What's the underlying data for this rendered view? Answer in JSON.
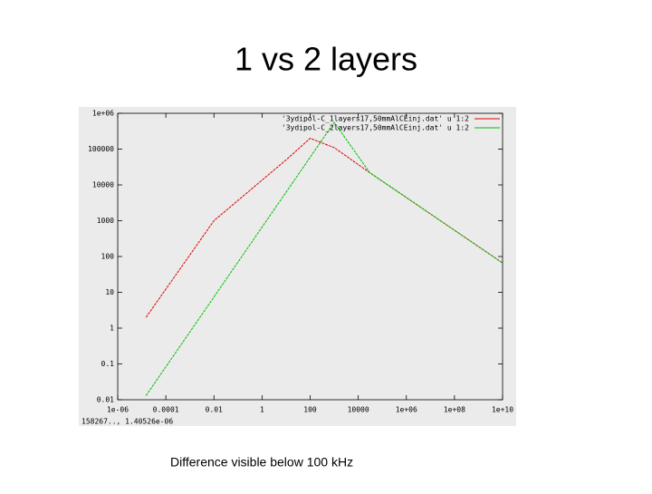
{
  "title": "1 vs 2 layers",
  "caption": "Difference visible below 100 kHz",
  "chart_data": {
    "type": "line",
    "xlog": true,
    "ylog": true,
    "xlim": [
      1e-06,
      10000000000.0
    ],
    "ylim": [
      0.01,
      1000000
    ],
    "xticks": [
      {
        "value": 1e-06,
        "label": "1e-06"
      },
      0.0001,
      0.01,
      1,
      100,
      10000,
      {
        "value": 1000000,
        "label": "1e+06"
      },
      {
        "value": 100000000,
        "label": "1e+08"
      },
      {
        "value": 10000000000,
        "label": "1e+10"
      }
    ],
    "yticks": [
      0.01,
      0.1,
      1,
      10,
      100,
      1000,
      10000,
      100000,
      {
        "value": 1000000,
        "label": "1e+06"
      }
    ],
    "legend": "top-right",
    "series": [
      {
        "name": "'3ydipol-C_1layers17,50mmAlCEinj.dat' u 1:2",
        "color": "#e00000",
        "x": [
          1.5e-05,
          0.01,
          10,
          100,
          1000,
          30000,
          10000000000
        ],
        "values": [
          2,
          1000,
          50000,
          200000,
          110000,
          22000,
          66
        ]
      },
      {
        "name": "'3ydipol-C_2layers17,50mmAlCEinj.dat' u 1:2",
        "color": "#00c000",
        "x": [
          1.5e-05,
          1000,
          30000,
          10000000000
        ],
        "values": [
          0.013,
          560000,
          22000,
          66
        ]
      }
    ],
    "readout": "158267.., 1.40526e-06"
  }
}
